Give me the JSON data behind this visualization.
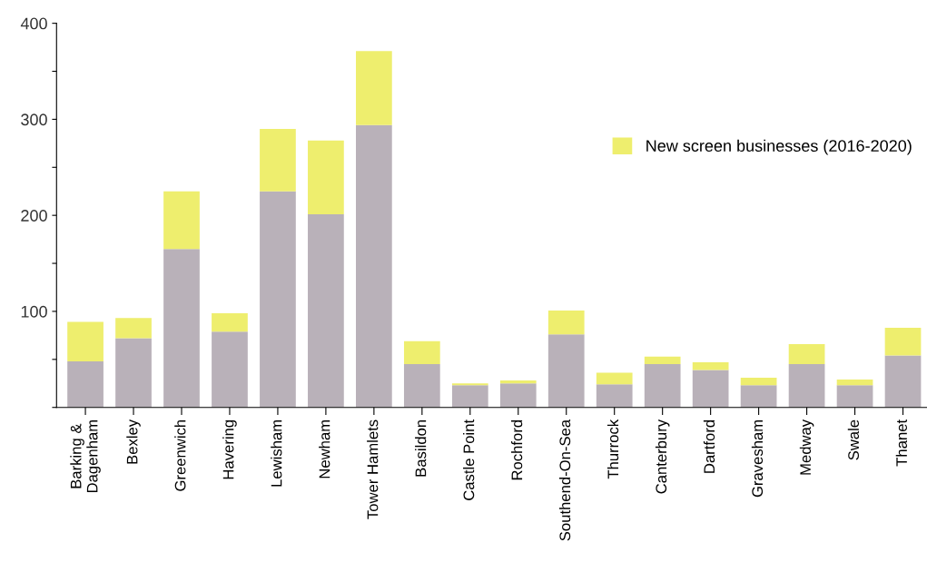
{
  "chart_data": {
    "type": "bar",
    "stacked": true,
    "categories": [
      "Barking &\nDagenham",
      "Bexley",
      "Greenwich",
      "Havering",
      "Lewisham",
      "Newham",
      "Tower Hamlets",
      "Basildon",
      "Castle Point",
      "Rochford",
      "Southend-On-Sea",
      "Thurrock",
      "Canterbury",
      "Dartford",
      "Gravesham",
      "Medway",
      "Swale",
      "Thanet"
    ],
    "series": [
      {
        "color": "#b9b1b9",
        "values": [
          48,
          72,
          165,
          79,
          225,
          201,
          294,
          45,
          23,
          25,
          76,
          24,
          45,
          39,
          23,
          45,
          23,
          54
        ]
      },
      {
        "name": "New screen businesses (2016-2020)",
        "color": "#eeee6e",
        "values": [
          41,
          21,
          60,
          19,
          65,
          77,
          77,
          24,
          2,
          3,
          25,
          12,
          8,
          8,
          8,
          21,
          6,
          29
        ]
      }
    ],
    "ylim": [
      0,
      400
    ],
    "yticks": [
      {
        "value": 0,
        "label": null
      },
      {
        "value": 50,
        "label": null
      },
      100,
      {
        "value": 150,
        "label": null
      },
      200,
      {
        "value": 250,
        "label": null
      },
      300,
      {
        "value": 350,
        "label": null
      },
      400
    ],
    "grid": false,
    "legend": "right"
  }
}
